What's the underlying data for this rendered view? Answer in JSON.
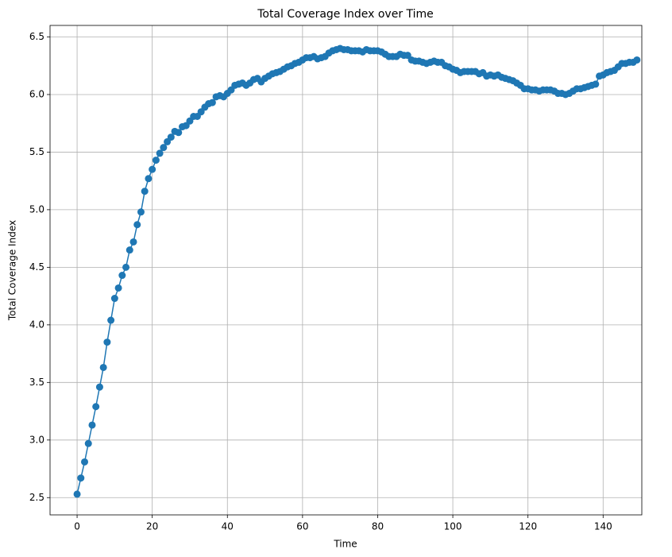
{
  "chart_data": {
    "type": "line",
    "title": "Total Coverage Index over Time",
    "xlabel": "Time",
    "ylabel": "Total Coverage Index",
    "x": [
      0,
      1,
      2,
      3,
      4,
      5,
      6,
      7,
      8,
      9,
      10,
      11,
      12,
      13,
      14,
      15,
      16,
      17,
      18,
      19,
      20,
      21,
      22,
      23,
      24,
      25,
      26,
      27,
      28,
      29,
      30,
      31,
      32,
      33,
      34,
      35,
      36,
      37,
      38,
      39,
      40,
      41,
      42,
      43,
      44,
      45,
      46,
      47,
      48,
      49,
      50,
      51,
      52,
      53,
      54,
      55,
      56,
      57,
      58,
      59,
      60,
      61,
      62,
      63,
      64,
      65,
      66,
      67,
      68,
      69,
      70,
      71,
      72,
      73,
      74,
      75,
      76,
      77,
      78,
      79,
      80,
      81,
      82,
      83,
      84,
      85,
      86,
      87,
      88,
      89,
      90,
      91,
      92,
      93,
      94,
      95,
      96,
      97,
      98,
      99,
      100,
      101,
      102,
      103,
      104,
      105,
      106,
      107,
      108,
      109,
      110,
      111,
      112,
      113,
      114,
      115,
      116,
      117,
      118,
      119,
      120,
      121,
      122,
      123,
      124,
      125,
      126,
      127,
      128,
      129,
      130,
      131,
      132,
      133,
      134,
      135,
      136,
      137,
      138,
      139,
      140,
      141,
      142,
      143,
      144,
      145,
      146,
      147,
      148,
      149
    ],
    "values": [
      2.53,
      2.67,
      2.81,
      2.97,
      3.13,
      3.29,
      3.46,
      3.63,
      3.85,
      4.04,
      4.23,
      4.32,
      4.43,
      4.5,
      4.65,
      4.72,
      4.87,
      4.98,
      5.16,
      5.27,
      5.35,
      5.43,
      5.49,
      5.54,
      5.59,
      5.63,
      5.68,
      5.67,
      5.72,
      5.73,
      5.77,
      5.81,
      5.81,
      5.85,
      5.89,
      5.92,
      5.93,
      5.98,
      5.99,
      5.98,
      6.01,
      6.04,
      6.08,
      6.09,
      6.1,
      6.08,
      6.1,
      6.13,
      6.14,
      6.11,
      6.14,
      6.16,
      6.18,
      6.19,
      6.2,
      6.22,
      6.24,
      6.25,
      6.27,
      6.28,
      6.3,
      6.32,
      6.32,
      6.33,
      6.31,
      6.32,
      6.33,
      6.36,
      6.38,
      6.39,
      6.4,
      6.39,
      6.39,
      6.38,
      6.38,
      6.38,
      6.37,
      6.39,
      6.38,
      6.38,
      6.38,
      6.37,
      6.35,
      6.33,
      6.33,
      6.33,
      6.35,
      6.34,
      6.34,
      6.3,
      6.29,
      6.29,
      6.28,
      6.27,
      6.28,
      6.29,
      6.28,
      6.28,
      6.25,
      6.24,
      6.22,
      6.21,
      6.19,
      6.2,
      6.2,
      6.2,
      6.2,
      6.18,
      6.19,
      6.16,
      6.17,
      6.16,
      6.17,
      6.15,
      6.14,
      6.13,
      6.12,
      6.1,
      6.08,
      6.05,
      6.05,
      6.04,
      6.04,
      6.03,
      6.04,
      6.04,
      6.04,
      6.03,
      6.01,
      6.01,
      6.0,
      6.01,
      6.03,
      6.05,
      6.05,
      6.06,
      6.07,
      6.08,
      6.09,
      6.16,
      6.17,
      6.19,
      6.2,
      6.21,
      6.24,
      6.27,
      6.27,
      6.28,
      6.28,
      6.3
    ],
    "color": "#1f77b4",
    "xlim": [
      -7.2,
      150.3
    ],
    "ylim": [
      2.35,
      6.6
    ],
    "xticks": [
      0,
      20,
      40,
      60,
      80,
      100,
      120,
      140
    ],
    "yticks": [
      2.5,
      {
        "value": 3,
        "label": "3.0"
      },
      3.5,
      {
        "value": 4,
        "label": "4.0"
      },
      4.5,
      {
        "value": 5,
        "label": "5.0"
      },
      5.5,
      {
        "value": 6,
        "label": "6.0"
      },
      6.5
    ],
    "grid": true
  }
}
